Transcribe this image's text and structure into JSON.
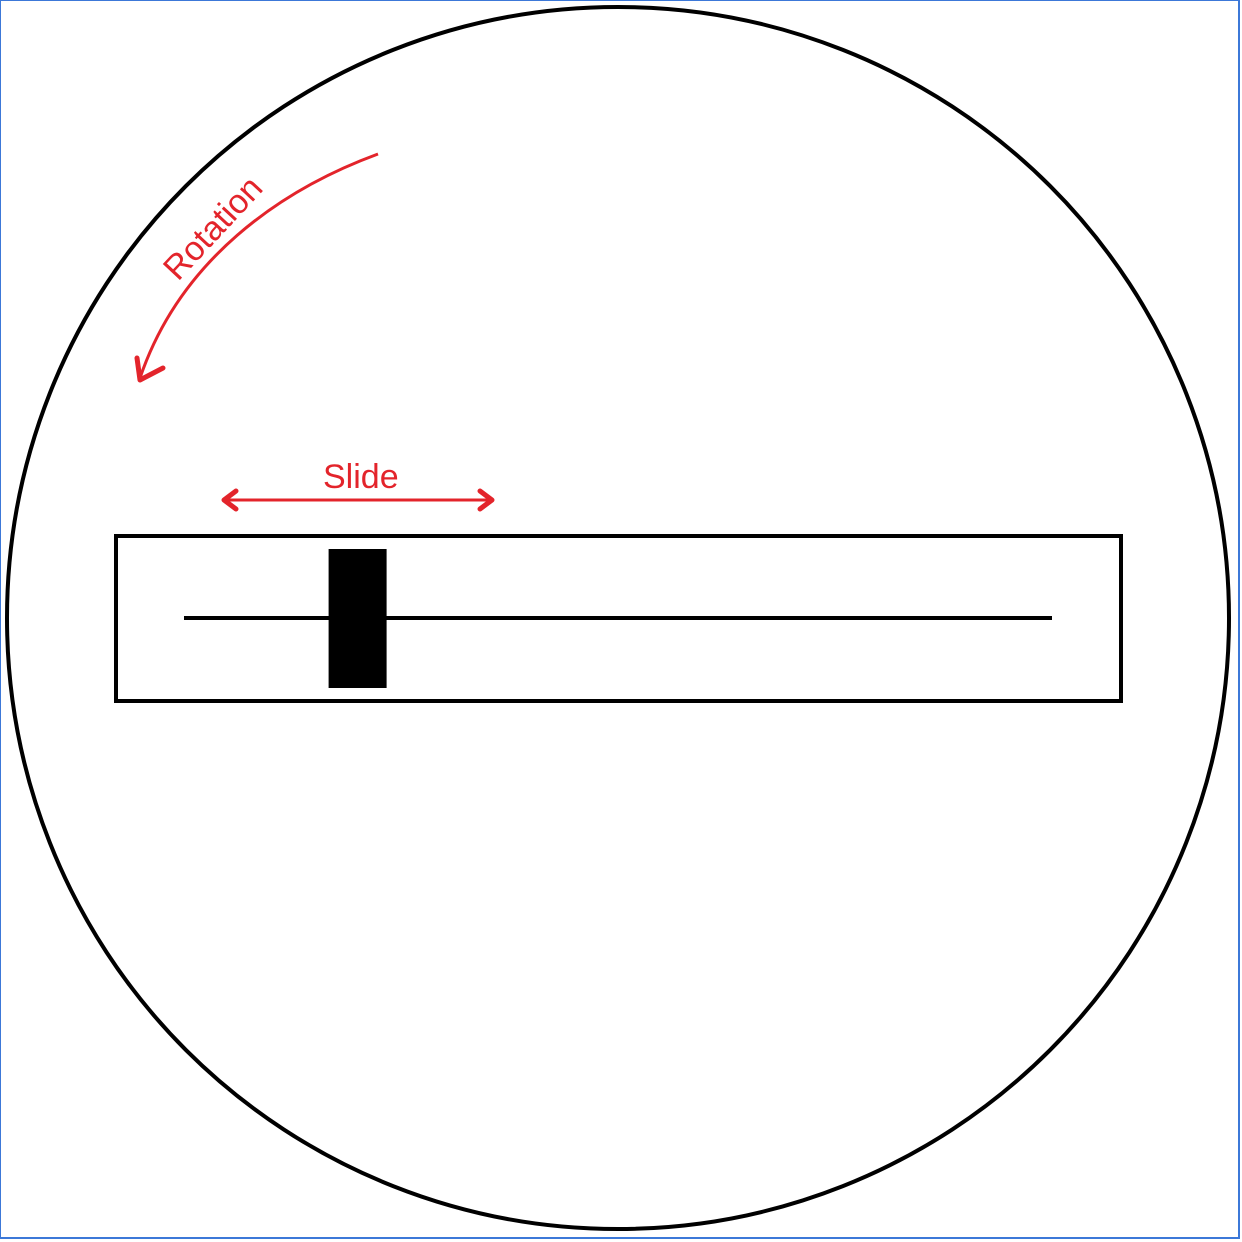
{
  "labels": {
    "rotation": "Rotation",
    "slide": "Slide"
  },
  "colors": {
    "annotation": "#e3242b",
    "outline": "#000000",
    "frame": "#3c78d8"
  },
  "slider": {
    "knob_position_fraction": 0.2
  }
}
